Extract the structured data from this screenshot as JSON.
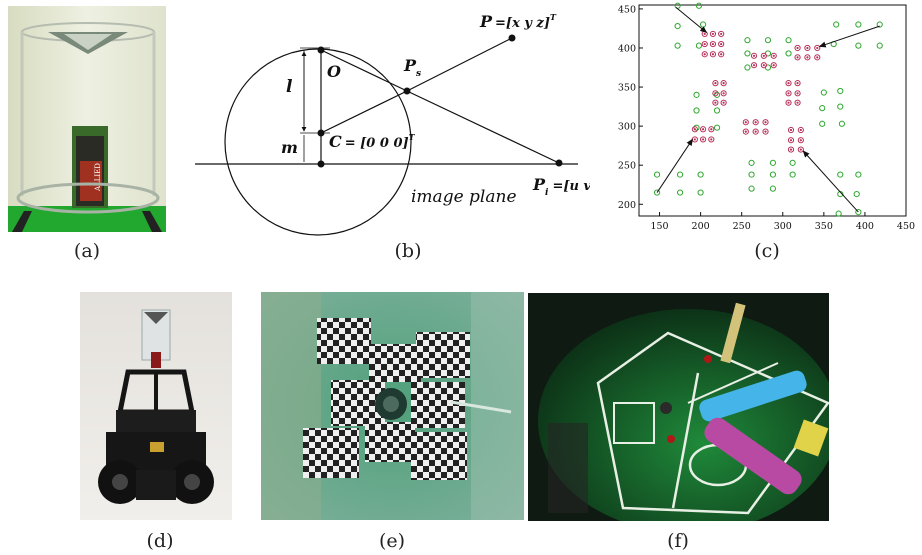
{
  "captions": {
    "a": "(a)",
    "b": "(b)",
    "c": "(c)",
    "d": "(d)",
    "e": "(e)",
    "f": "(f)"
  },
  "diagram_b": {
    "point_P": "P",
    "point_P_def": "=[x y z]",
    "superscript_T": "T",
    "point_O": "O",
    "point_Ps": "P",
    "point_Ps_sub": "s",
    "label_l": "l",
    "label_m": "m",
    "point_C": "C",
    "point_C_def": "= [0 0 0]",
    "image_plane": "image plane",
    "point_Pi": "P",
    "point_Pi_sub": "i",
    "point_Pi_def": "=[u v]"
  },
  "photo_a_text": "ALLIED",
  "chart_data": {
    "type": "scatter",
    "xlim": [
      125,
      450
    ],
    "ylim": [
      185,
      455
    ],
    "x_ticks": [
      150,
      200,
      250,
      300,
      350,
      400,
      450
    ],
    "y_ticks": [
      200,
      250,
      300,
      350,
      400,
      450
    ],
    "series": [
      {
        "marker": "open-circle",
        "color": "#2fa82f",
        "points": [
          [
            172,
            454
          ],
          [
            198,
            454
          ],
          [
            172,
            428
          ],
          [
            203,
            430
          ],
          [
            172,
            403
          ],
          [
            198,
            403
          ],
          [
            257,
            410
          ],
          [
            282,
            410
          ],
          [
            307,
            410
          ],
          [
            257,
            393
          ],
          [
            282,
            393
          ],
          [
            307,
            393
          ],
          [
            257,
            375
          ],
          [
            282,
            375
          ],
          [
            365,
            430
          ],
          [
            392,
            430
          ],
          [
            418,
            430
          ],
          [
            362,
            405
          ],
          [
            392,
            403
          ],
          [
            418,
            403
          ],
          [
            195,
            340
          ],
          [
            220,
            340
          ],
          [
            195,
            320
          ],
          [
            220,
            320
          ],
          [
            195,
            298
          ],
          [
            220,
            298
          ],
          [
            370,
            345
          ],
          [
            350,
            343
          ],
          [
            370,
            325
          ],
          [
            348,
            323
          ],
          [
            372,
            303
          ],
          [
            348,
            303
          ],
          [
            262,
            253
          ],
          [
            288,
            253
          ],
          [
            312,
            253
          ],
          [
            262,
            238
          ],
          [
            288,
            238
          ],
          [
            312,
            238
          ],
          [
            262,
            220
          ],
          [
            288,
            220
          ],
          [
            147,
            238
          ],
          [
            175,
            238
          ],
          [
            200,
            238
          ],
          [
            147,
            215
          ],
          [
            175,
            215
          ],
          [
            200,
            215
          ],
          [
            370,
            238
          ],
          [
            392,
            238
          ],
          [
            370,
            213
          ],
          [
            390,
            213
          ],
          [
            392,
            190
          ],
          [
            368,
            188
          ]
        ]
      },
      {
        "marker": "dot-in-circle",
        "color": "#b8325a",
        "points": [
          [
            205,
            418
          ],
          [
            215,
            418
          ],
          [
            225,
            418
          ],
          [
            205,
            405
          ],
          [
            215,
            405
          ],
          [
            225,
            405
          ],
          [
            205,
            392
          ],
          [
            215,
            392
          ],
          [
            225,
            392
          ],
          [
            265,
            390
          ],
          [
            277,
            390
          ],
          [
            289,
            390
          ],
          [
            265,
            378
          ],
          [
            277,
            378
          ],
          [
            289,
            378
          ],
          [
            318,
            400
          ],
          [
            330,
            400
          ],
          [
            342,
            400
          ],
          [
            318,
            388
          ],
          [
            330,
            388
          ],
          [
            342,
            388
          ],
          [
            218,
            355
          ],
          [
            228,
            355
          ],
          [
            218,
            342
          ],
          [
            228,
            342
          ],
          [
            218,
            330
          ],
          [
            228,
            330
          ],
          [
            307,
            355
          ],
          [
            318,
            355
          ],
          [
            307,
            342
          ],
          [
            318,
            342
          ],
          [
            307,
            330
          ],
          [
            318,
            330
          ],
          [
            193,
            296
          ],
          [
            203,
            296
          ],
          [
            213,
            296
          ],
          [
            193,
            283
          ],
          [
            203,
            283
          ],
          [
            213,
            283
          ],
          [
            255,
            305
          ],
          [
            267,
            305
          ],
          [
            279,
            305
          ],
          [
            255,
            293
          ],
          [
            267,
            293
          ],
          [
            279,
            293
          ],
          [
            310,
            295
          ],
          [
            322,
            295
          ],
          [
            310,
            282
          ],
          [
            322,
            282
          ],
          [
            310,
            270
          ],
          [
            322,
            270
          ]
        ]
      }
    ],
    "arrows": [
      {
        "from": [
          170,
          452
        ],
        "to": [
          207,
          420
        ]
      },
      {
        "from": [
          418,
          428
        ],
        "to": [
          345,
          402
        ]
      },
      {
        "from": [
          147,
          215
        ],
        "to": [
          190,
          283
        ]
      },
      {
        "from": [
          392,
          190
        ],
        "to": [
          325,
          268
        ]
      }
    ]
  }
}
